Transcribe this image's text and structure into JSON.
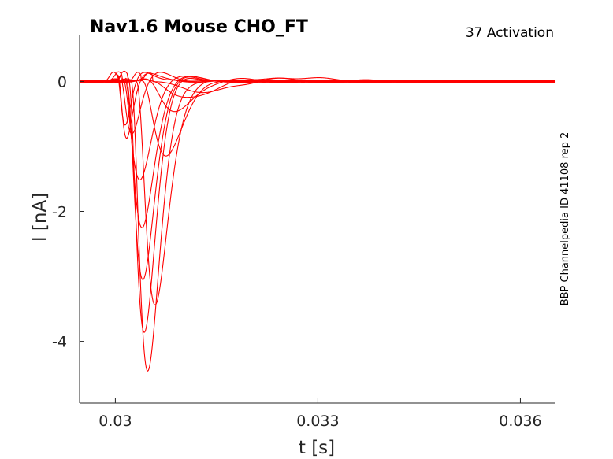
{
  "chart_data": {
    "type": "line",
    "title": "Nav1.6  Mouse  CHO_FT",
    "protocol_label": "37  Activation",
    "side_label": "BBP Channelpedia ID 41108 rep 2",
    "xlabel": "t [s]",
    "ylabel": "I [nA]",
    "xlim": [
      0.02947,
      0.03652
    ],
    "ylim": [
      -4.95,
      0.72
    ],
    "xticks": [
      0.03,
      0.033,
      0.036
    ],
    "xtick_labels": [
      "0.03",
      "0.033",
      "0.036"
    ],
    "yticks": [
      0,
      -2,
      -4
    ],
    "ytick_labels": [
      "0",
      "-2",
      "-4"
    ],
    "grid": false,
    "line_color": "#ff0000",
    "series": [
      {
        "t_onset": 0.03002,
        "t_peak": 0.03015,
        "peak": -0.85,
        "width": 5e-05
      },
      {
        "t_onset": 0.03003,
        "t_peak": 0.03017,
        "peak": -1.05,
        "width": 6e-05
      },
      {
        "t_onset": 0.03006,
        "t_peak": 0.03025,
        "peak": -0.95,
        "width": 0.0001
      },
      {
        "t_onset": 0.0301,
        "t_peak": 0.03037,
        "peak": -1.65,
        "width": 0.00012
      },
      {
        "t_onset": 0.03013,
        "t_peak": 0.0304,
        "peak": -2.4,
        "width": 0.00012
      },
      {
        "t_onset": 0.03015,
        "t_peak": 0.03041,
        "peak": -3.2,
        "width": 0.00013
      },
      {
        "t_onset": 0.03018,
        "t_peak": 0.03043,
        "peak": -4.0,
        "width": 0.00013
      },
      {
        "t_onset": 0.03022,
        "t_peak": 0.03048,
        "peak": -4.5,
        "width": 0.00014
      },
      {
        "t_onset": 0.0303,
        "t_peak": 0.03059,
        "peak": -3.5,
        "width": 0.00017
      },
      {
        "t_onset": 0.03038,
        "t_peak": 0.03075,
        "peak": -1.2,
        "width": 0.0003
      },
      {
        "t_onset": 0.03045,
        "t_peak": 0.0309,
        "peak": -0.5,
        "width": 0.0004
      },
      {
        "t_onset": 0.0305,
        "t_peak": 0.0311,
        "peak": -0.3,
        "width": 0.0005
      },
      {
        "t_onset": 0.03055,
        "t_peak": 0.03135,
        "peak": -0.2,
        "width": 0.0006
      }
    ]
  }
}
